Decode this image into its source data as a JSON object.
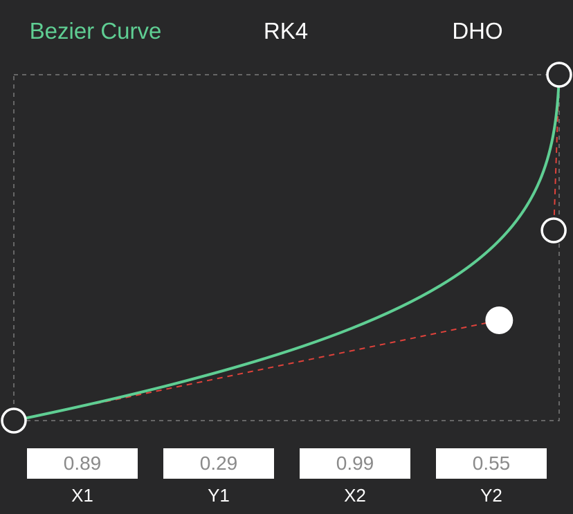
{
  "tabs": [
    {
      "label": "Bezier Curve",
      "active": true
    },
    {
      "label": "RK4",
      "active": false
    },
    {
      "label": "DHO",
      "active": false
    }
  ],
  "colors": {
    "background": "#282829",
    "accent": "#5fce93",
    "curve": "#5fce93",
    "control_line": "#e0423b",
    "frame": "#7a7a7a",
    "handle": "#ffffff"
  },
  "bezier": {
    "x1": "0.89",
    "y1": "0.29",
    "x2": "0.99",
    "y2": "0.55"
  },
  "fields": [
    {
      "key": "x1",
      "label": "X1",
      "value": "0.89"
    },
    {
      "key": "y1",
      "label": "Y1",
      "value": "0.29"
    },
    {
      "key": "x2",
      "label": "X2",
      "value": "0.99"
    },
    {
      "key": "y2",
      "label": "Y2",
      "value": "0.55"
    }
  ]
}
